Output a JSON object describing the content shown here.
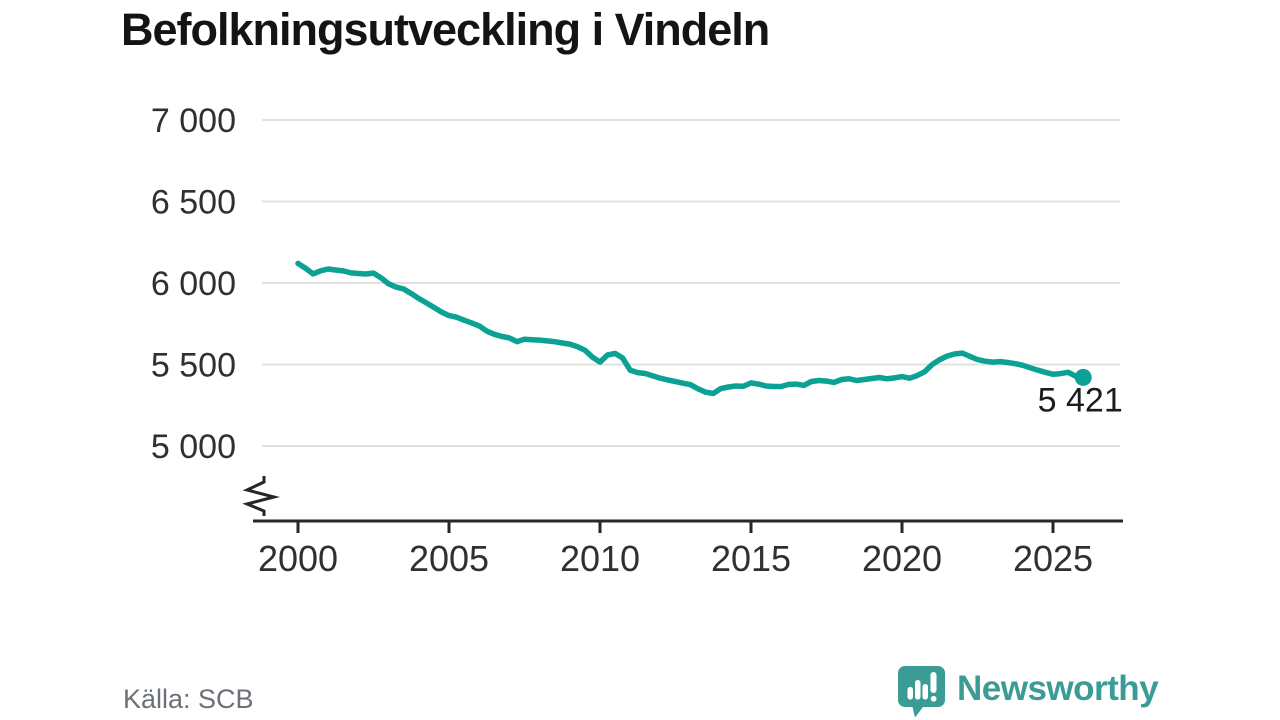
{
  "title": "Befolkningsutveckling i Vindeln",
  "footer": {
    "source": "Källa: SCB",
    "brand": "Newsworthy",
    "brand_color": "#3a9c95"
  },
  "chart_data": {
    "type": "line",
    "title": "Befolkningsutveckling i Vindeln",
    "series_name": "Befolkning i Vindeln",
    "line_color": "#0ba295",
    "grid_color": "#e0e0e0",
    "axis_color": "#262626",
    "label_color": "#303030",
    "grid": "horizontal",
    "axis_break": true,
    "x_range": [
      2000,
      2026
    ],
    "ylim": [
      4700,
      7000
    ],
    "yticks": [
      {
        "value": 7000,
        "label": "7 000"
      },
      {
        "value": 6500,
        "label": "6 500"
      },
      {
        "value": 6000,
        "label": "6 000"
      },
      {
        "value": 5500,
        "label": "5 500"
      },
      {
        "value": 5000,
        "label": "5 000"
      }
    ],
    "xticks": [
      {
        "value": 2000,
        "label": "2000"
      },
      {
        "value": 2005,
        "label": "2005"
      },
      {
        "value": 2010,
        "label": "2010"
      },
      {
        "value": 2015,
        "label": "2015"
      },
      {
        "value": 2020,
        "label": "2020"
      },
      {
        "value": 2025,
        "label": "2025"
      }
    ],
    "end_label": "5 421",
    "end_value": 5421,
    "points": [
      [
        2000,
        6120
      ],
      [
        2000.25,
        6090
      ],
      [
        2000.5,
        6056
      ],
      [
        2000.75,
        6075
      ],
      [
        2001,
        6086
      ],
      [
        2001.25,
        6080
      ],
      [
        2001.5,
        6074
      ],
      [
        2001.75,
        6062
      ],
      [
        2002,
        6058
      ],
      [
        2002.25,
        6055
      ],
      [
        2002.5,
        6061
      ],
      [
        2002.75,
        6031
      ],
      [
        2003,
        5995
      ],
      [
        2003.25,
        5975
      ],
      [
        2003.5,
        5963
      ],
      [
        2003.75,
        5935
      ],
      [
        2004,
        5905
      ],
      [
        2004.25,
        5878
      ],
      [
        2004.5,
        5850
      ],
      [
        2004.75,
        5822
      ],
      [
        2005,
        5800
      ],
      [
        2005.25,
        5790
      ],
      [
        2005.5,
        5772
      ],
      [
        2005.75,
        5755
      ],
      [
        2006,
        5737
      ],
      [
        2006.25,
        5705
      ],
      [
        2006.5,
        5685
      ],
      [
        2006.75,
        5672
      ],
      [
        2007,
        5663
      ],
      [
        2007.25,
        5640
      ],
      [
        2007.5,
        5655
      ],
      [
        2007.75,
        5652
      ],
      [
        2008,
        5650
      ],
      [
        2008.25,
        5645
      ],
      [
        2008.5,
        5640
      ],
      [
        2008.75,
        5632
      ],
      [
        2009,
        5625
      ],
      [
        2009.25,
        5610
      ],
      [
        2009.5,
        5588
      ],
      [
        2009.75,
        5545
      ],
      [
        2010,
        5515
      ],
      [
        2010.25,
        5558
      ],
      [
        2010.5,
        5568
      ],
      [
        2010.75,
        5540
      ],
      [
        2011,
        5465
      ],
      [
        2011.25,
        5450
      ],
      [
        2011.5,
        5445
      ],
      [
        2011.75,
        5430
      ],
      [
        2012,
        5416
      ],
      [
        2012.25,
        5405
      ],
      [
        2012.5,
        5395
      ],
      [
        2012.75,
        5385
      ],
      [
        2013,
        5376
      ],
      [
        2013.25,
        5350
      ],
      [
        2013.5,
        5330
      ],
      [
        2013.75,
        5323
      ],
      [
        2014,
        5352
      ],
      [
        2014.25,
        5362
      ],
      [
        2014.5,
        5368
      ],
      [
        2014.75,
        5366
      ],
      [
        2015,
        5387
      ],
      [
        2015.25,
        5380
      ],
      [
        2015.5,
        5368
      ],
      [
        2015.75,
        5365
      ],
      [
        2016,
        5365
      ],
      [
        2016.25,
        5378
      ],
      [
        2016.5,
        5380
      ],
      [
        2016.75,
        5372
      ],
      [
        2017,
        5396
      ],
      [
        2017.25,
        5402
      ],
      [
        2017.5,
        5398
      ],
      [
        2017.75,
        5390
      ],
      [
        2018,
        5408
      ],
      [
        2018.25,
        5412
      ],
      [
        2018.5,
        5402
      ],
      [
        2018.75,
        5408
      ],
      [
        2019,
        5414
      ],
      [
        2019.25,
        5420
      ],
      [
        2019.5,
        5412
      ],
      [
        2019.75,
        5418
      ],
      [
        2020,
        5426
      ],
      [
        2020.25,
        5416
      ],
      [
        2020.5,
        5432
      ],
      [
        2020.75,
        5455
      ],
      [
        2021,
        5500
      ],
      [
        2021.25,
        5530
      ],
      [
        2021.5,
        5552
      ],
      [
        2021.75,
        5565
      ],
      [
        2022,
        5570
      ],
      [
        2022.25,
        5550
      ],
      [
        2022.5,
        5530
      ],
      [
        2022.75,
        5520
      ],
      [
        2023,
        5515
      ],
      [
        2023.25,
        5518
      ],
      [
        2023.5,
        5512
      ],
      [
        2023.75,
        5505
      ],
      [
        2024,
        5495
      ],
      [
        2024.25,
        5480
      ],
      [
        2024.5,
        5465
      ],
      [
        2024.75,
        5452
      ],
      [
        2025,
        5440
      ],
      [
        2025.25,
        5444
      ],
      [
        2025.5,
        5452
      ],
      [
        2025.75,
        5428
      ],
      [
        2026,
        5421
      ]
    ]
  }
}
